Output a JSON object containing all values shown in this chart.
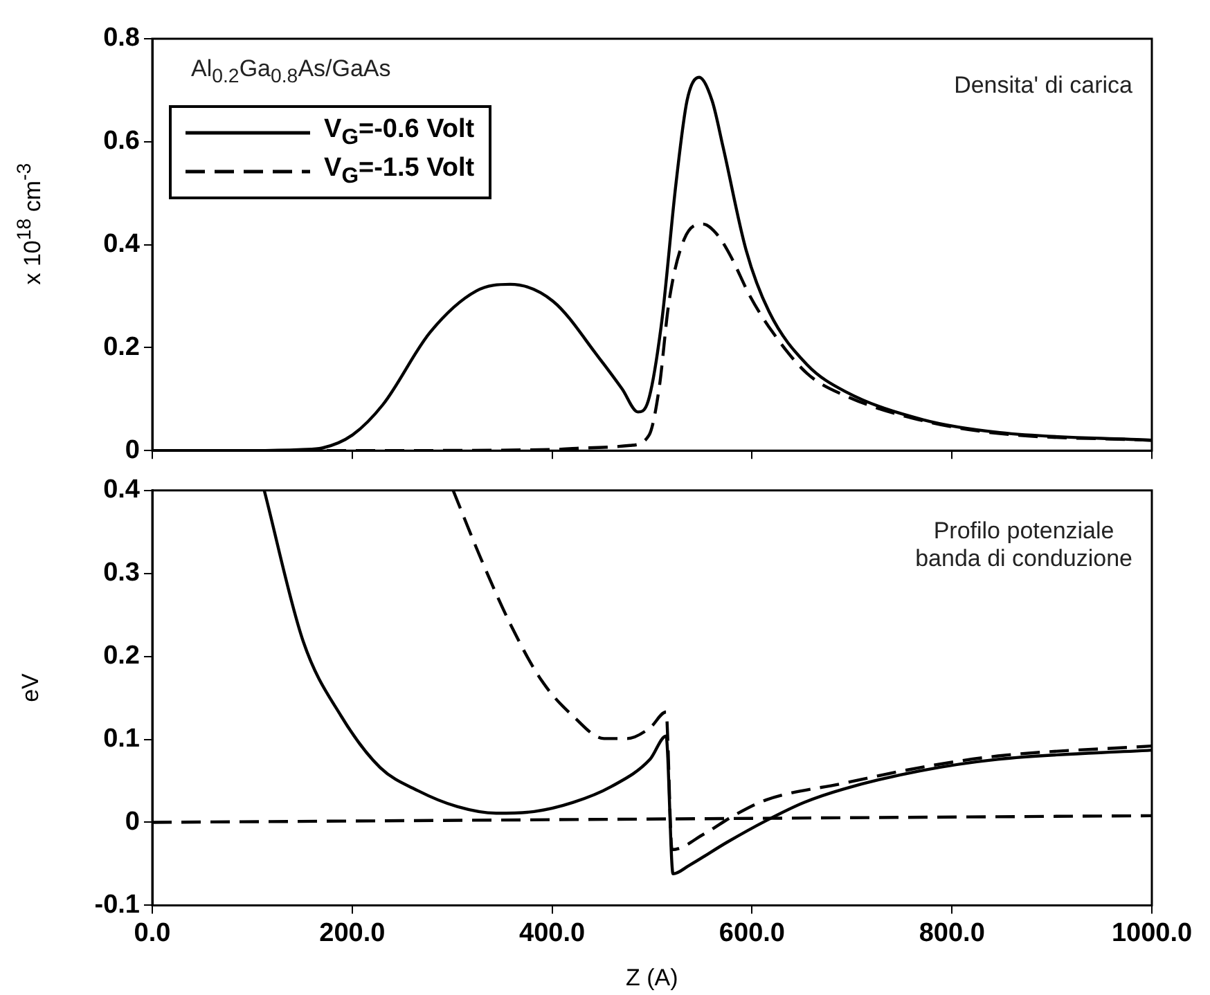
{
  "chart_data": [
    {
      "type": "line",
      "xlim": [
        0,
        1000
      ],
      "xticks": [
        0,
        200,
        400,
        600,
        800,
        1000
      ],
      "tick_labels": "y",
      "ylim": [
        0,
        0.8
      ],
      "yticks": [
        0,
        0.2,
        0.4,
        0.6,
        0.8
      ],
      "ylabel": "x 10$^{18}$ cm$^{-3}$",
      "legend": "top left",
      "grid": false,
      "marker": "none",
      "annotations": [
        "Al$_{0.2}$Ga$_{0.8}$As/GaAs",
        "Densita' di carica"
      ],
      "series": [
        {
          "name": "V$_{G}$=-0.6 Volt",
          "color": "#000000",
          "line_style": "solid",
          "x": [
            0,
            100,
            150,
            170,
            200,
            231,
            278,
            324,
            358,
            401,
            447,
            470,
            486,
            495,
            509,
            524,
            535,
            547,
            560,
            571,
            594,
            617,
            655,
            694,
            771,
            848,
            1000
          ],
          "values": [
            0,
            0,
            0.002,
            0.005,
            0.03,
            0.09,
            0.23,
            0.31,
            0.323,
            0.29,
            0.18,
            0.12,
            0.075,
            0.09,
            0.24,
            0.52,
            0.68,
            0.725,
            0.68,
            0.59,
            0.39,
            0.27,
            0.167,
            0.114,
            0.06,
            0.035,
            0.02
          ]
        },
        {
          "name": "V$_{G}$=-1.5 Volt",
          "color": "#000000",
          "line_style": "dashed",
          "x": [
            0,
            200,
            400,
            432,
            478,
            497,
            507,
            517,
            532,
            551,
            565,
            578,
            598,
            617,
            655,
            694,
            771,
            848,
            1000
          ],
          "values": [
            0,
            0,
            0.002,
            0.005,
            0.01,
            0.03,
            0.12,
            0.29,
            0.41,
            0.44,
            0.42,
            0.38,
            0.3,
            0.24,
            0.15,
            0.106,
            0.058,
            0.033,
            0.02
          ]
        }
      ]
    },
    {
      "type": "line",
      "xlim": [
        0,
        1000
      ],
      "xticks": [
        {
          "value": 0,
          "label": "0.0"
        },
        {
          "value": 200,
          "label": "200.0"
        },
        {
          "value": 400,
          "label": "400.0"
        },
        {
          "value": 600,
          "label": "600.0"
        },
        {
          "value": 800,
          "label": "800.0"
        },
        {
          "value": 1000,
          "label": "1000.0"
        }
      ],
      "ylim": [
        -0.1,
        0.4
      ],
      "yticks": [
        -0.1,
        0,
        0.1,
        0.2,
        0.3,
        0.4
      ],
      "xlabel": "Z (A)",
      "ylabel": "eV",
      "legend": false,
      "grid": false,
      "marker": "none",
      "annotations": [
        "Profilo potenziale\nbanda di conduzione"
      ],
      "series": [
        {
          "color": "#000000",
          "line_style": "solid",
          "x": [
            112,
            151,
            189,
            228,
            266,
            305,
            344,
            382,
            421,
            459,
            498,
            514,
            521,
            537,
            575,
            614,
            652,
            691,
            768,
            846,
            1000
          ],
          "values": [
            0.4,
            0.218,
            0.128,
            0.066,
            0.038,
            0.019,
            0.011,
            0.013,
            0.024,
            0.043,
            0.076,
            0.104,
            -0.062,
            -0.052,
            -0.024,
            0.002,
            0.024,
            0.04,
            0.062,
            0.076,
            0.087
          ]
        },
        {
          "color": "#000000",
          "line_style": "dashed",
          "x": [
            301,
            328,
            359,
            390,
            421,
            452,
            475,
            498,
            514,
            520,
            552,
            583,
            614,
            691,
            768,
            846,
            1000
          ],
          "values": [
            0.4,
            0.32,
            0.237,
            0.17,
            0.128,
            0.101,
            0.101,
            0.114,
            0.133,
            -0.033,
            -0.014,
            0.009,
            0.027,
            0.047,
            0.066,
            0.08,
            0.092
          ]
        },
        {
          "color": "#000000",
          "line_style": "dashed",
          "x": [
            0,
            1000
          ],
          "values": [
            0,
            0.008
          ]
        }
      ]
    }
  ]
}
